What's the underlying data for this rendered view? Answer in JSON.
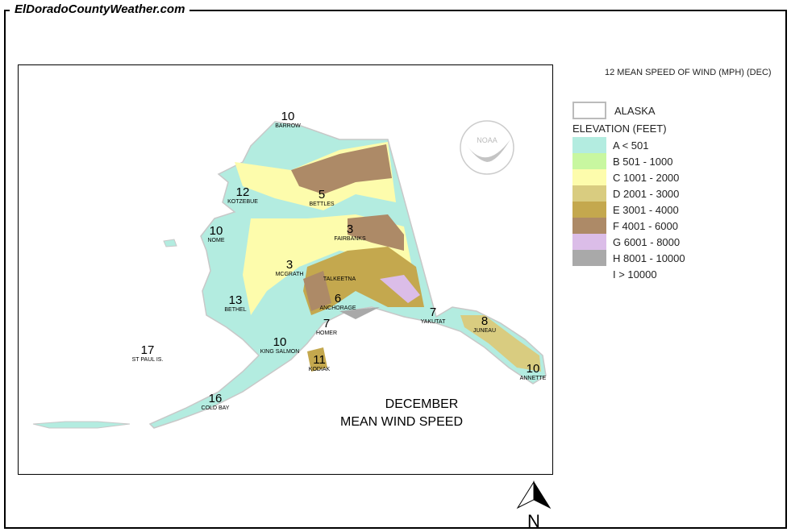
{
  "site_title": "ElDoradoCountyWeather.com",
  "legend": {
    "header": "12 MEAN SPEED OF WIND (MPH) (DEC)",
    "alaska_label": "ALASKA",
    "elevation_title": "ELEVATION (FEET)",
    "items": [
      {
        "label": "A < 501",
        "color": "#b3ece0"
      },
      {
        "label": "B 501 - 1000",
        "color": "#c8f7a0"
      },
      {
        "label": "C 1001 - 2000",
        "color": "#fdfcac"
      },
      {
        "label": "D 2001 - 3000",
        "color": "#d9cc80"
      },
      {
        "label": "E 3001 - 4000",
        "color": "#c4a84e"
      },
      {
        "label": "F 4001 - 6000",
        "color": "#ad8a67"
      },
      {
        "label": "G 6001 - 8000",
        "color": "#dbbde8"
      },
      {
        "label": "H 8001 - 10000",
        "color": "#a9a9a9"
      },
      {
        "label": "I > 10000",
        "color": "#ffffff"
      }
    ]
  },
  "map": {
    "title_line1": "DECEMBER",
    "title_line2": "MEAN WIND SPEED",
    "logo_text": "NOAA",
    "stations": [
      {
        "name": "BARROW",
        "value": "10"
      },
      {
        "name": "KOTZEBUE",
        "value": "12"
      },
      {
        "name": "BETTLES",
        "value": "5"
      },
      {
        "name": "NOME",
        "value": "10"
      },
      {
        "name": "FAIRBANKS",
        "value": "3"
      },
      {
        "name": "MCGRATH",
        "value": "3"
      },
      {
        "name": "TALKEETNA",
        "value": ""
      },
      {
        "name": "ANCHORAGE",
        "value": "6"
      },
      {
        "name": "BETHEL",
        "value": "13"
      },
      {
        "name": "YAKUTAT",
        "value": "7"
      },
      {
        "name": "JUNEAU",
        "value": "8"
      },
      {
        "name": "HOMER",
        "value": "7"
      },
      {
        "name": "KING SALMON",
        "value": "10"
      },
      {
        "name": "KODIAK",
        "value": "11"
      },
      {
        "name": "ST PAUL IS.",
        "value": "17"
      },
      {
        "name": "ANNETTE",
        "value": "10"
      },
      {
        "name": "COLD BAY",
        "value": "16"
      }
    ]
  },
  "north_arrow_label": "N"
}
